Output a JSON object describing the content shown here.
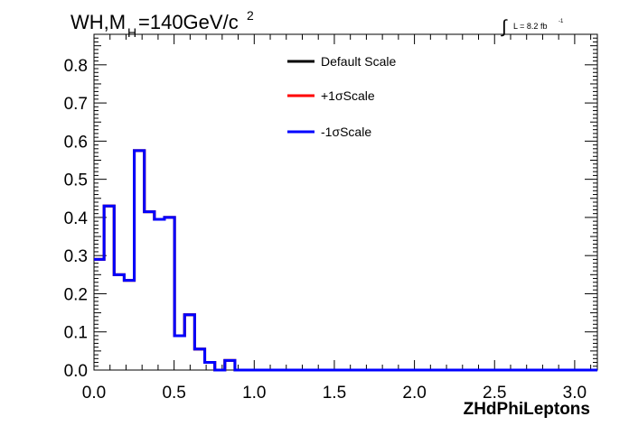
{
  "header": {
    "title_main": "WH,M",
    "title_sub": "H",
    "title_rest": "=140GeV/c",
    "title_sup": "2",
    "lumi_label": "L = 8.2 fb",
    "lumi_sup": "-1"
  },
  "chart_data": {
    "type": "line",
    "style": "step-histogram",
    "xlabel": "ZHdPhiLeptons",
    "ylabel": "",
    "xlim": [
      0.0,
      3.14159
    ],
    "ylim": [
      0.0,
      0.88
    ],
    "xticks": [
      0.0,
      0.5,
      1.0,
      1.5,
      2.0,
      2.5,
      3.0
    ],
    "xtick_labels": [
      "0.0",
      "0.5",
      "1.0",
      "1.5",
      "2.0",
      "2.5",
      "3.0"
    ],
    "yticks": [
      0.0,
      0.1,
      0.2,
      0.3,
      0.4,
      0.5,
      0.6,
      0.7,
      0.8
    ],
    "ytick_labels": [
      "0.0",
      "0.1",
      "0.2",
      "0.3",
      "0.4",
      "0.5",
      "0.6",
      "0.7",
      "0.8"
    ],
    "grid": false,
    "legend_position": "top-center",
    "bin_edges": [
      0.0,
      0.0628,
      0.1257,
      0.1885,
      0.2513,
      0.3142,
      0.377,
      0.4398,
      0.5027,
      0.5655,
      0.6283,
      0.6912,
      0.754,
      0.8168,
      0.8796,
      3.1416
    ],
    "series": [
      {
        "name": "Default Scale",
        "color": "#000000",
        "values": [
          0.29,
          0.43,
          0.25,
          0.235,
          0.575,
          0.415,
          0.395,
          0.4,
          0.09,
          0.145,
          0.055,
          0.02,
          0.0,
          0.025,
          0.0
        ]
      },
      {
        "name": "+1σScale",
        "color": "#ff0000",
        "values": [
          0.29,
          0.43,
          0.25,
          0.235,
          0.575,
          0.415,
          0.395,
          0.4,
          0.09,
          0.145,
          0.055,
          0.02,
          0.0,
          0.025,
          0.0
        ]
      },
      {
        "name": "-1σScale",
        "color": "#0000ff",
        "values": [
          0.29,
          0.43,
          0.25,
          0.235,
          0.575,
          0.415,
          0.395,
          0.4,
          0.09,
          0.145,
          0.055,
          0.02,
          0.0,
          0.025,
          0.0
        ]
      }
    ]
  }
}
